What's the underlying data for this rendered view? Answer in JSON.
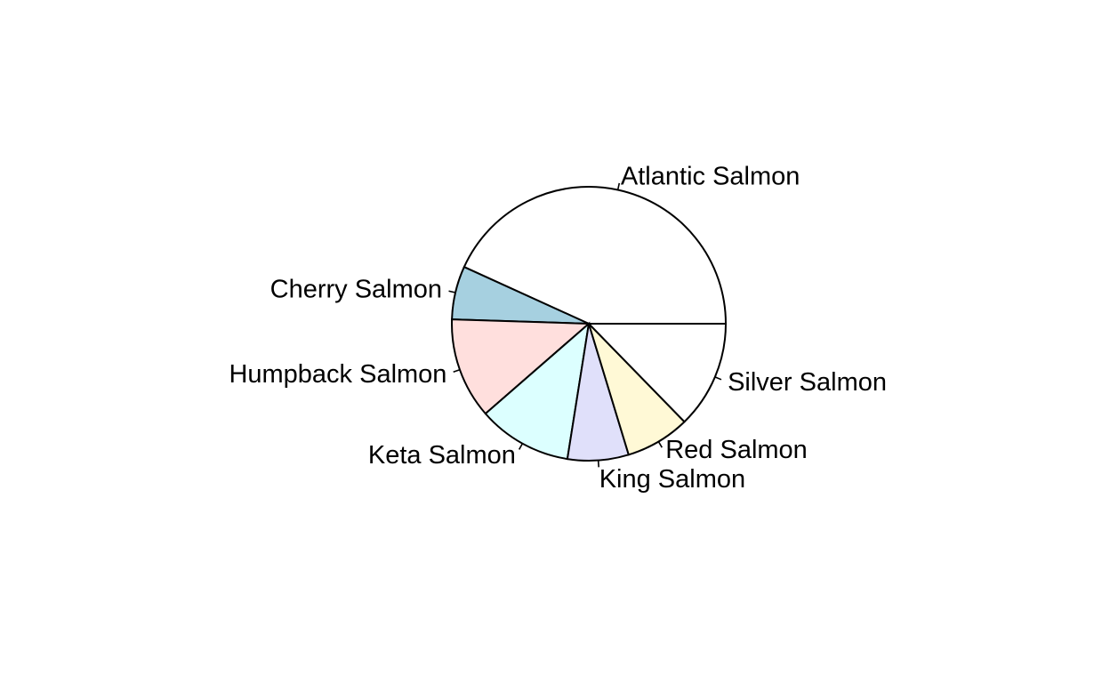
{
  "chart_data": {
    "type": "pie",
    "title": "",
    "legend": "none",
    "slices": [
      {
        "label": "Atlantic Salmon",
        "value": 43.2,
        "color": "#ffffff"
      },
      {
        "label": "Cherry Salmon",
        "value": 6.3,
        "color": "#a6d0e0"
      },
      {
        "label": "Humpback Salmon",
        "value": 11.9,
        "color": "#ffdfdd"
      },
      {
        "label": "Keta Salmon",
        "value": 11.1,
        "color": "#dcffff"
      },
      {
        "label": "King Salmon",
        "value": 7.2,
        "color": "#e0e0fa"
      },
      {
        "label": "Red Salmon",
        "value": 7.6,
        "color": "#fff9d6"
      },
      {
        "label": "Silver Salmon",
        "value": 12.7,
        "color": "#ffffff"
      }
    ]
  }
}
